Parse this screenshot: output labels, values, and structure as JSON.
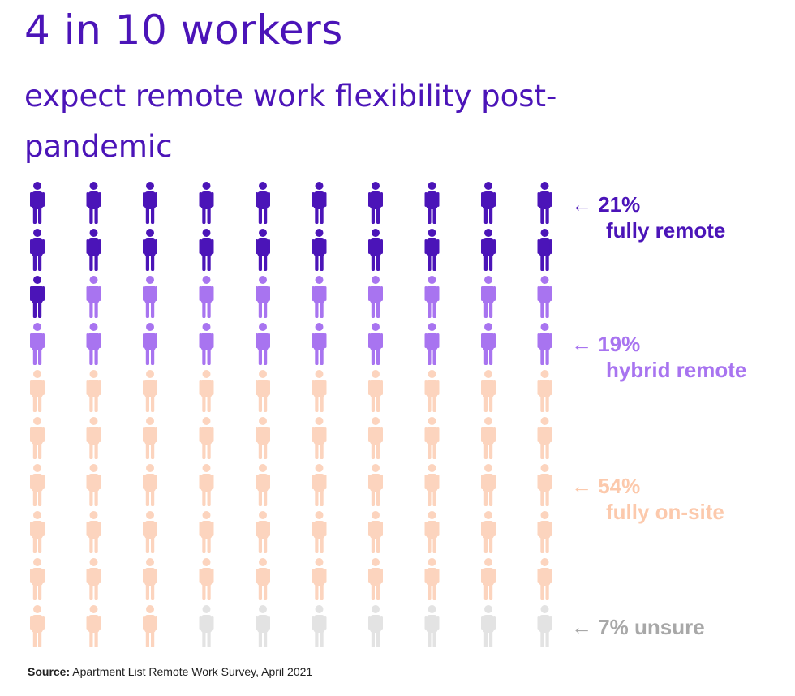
{
  "title": "4 in 10 workers",
  "subtitle": "expect remote work flexibility post-pandemic",
  "chart_data": {
    "type": "pictograph",
    "total_icons": 100,
    "categories": [
      "fully remote",
      "hybrid remote",
      "fully on-site",
      "unsure"
    ],
    "values": [
      21,
      19,
      54,
      7
    ],
    "value_labels": [
      "21%",
      "19%",
      "54%",
      "7% unsure"
    ],
    "colors": [
      "#4b14b8",
      "#a874f0",
      "#fcd4be",
      "#e3e3e3"
    ],
    "columns": 10,
    "rows": 10,
    "fill_order": "row-major; last on-site row is filled partially, remainder unsure"
  },
  "legend": {
    "fully_remote": {
      "pct": "← 21%",
      "label": "fully remote",
      "color": "#4b14b8"
    },
    "hybrid_remote": {
      "pct": "← 19%",
      "label": "hybrid remote",
      "color": "#a874f0"
    },
    "fully_onsite": {
      "pct": "← 54%",
      "label": "fully on-site",
      "color": "#fcc9ac"
    },
    "unsure": {
      "pct": "← 7% unsure",
      "color": "#a8a8a8"
    }
  },
  "source": {
    "prefix": "Source:",
    "text": " Apartment List Remote Work Survey, April 2021"
  }
}
